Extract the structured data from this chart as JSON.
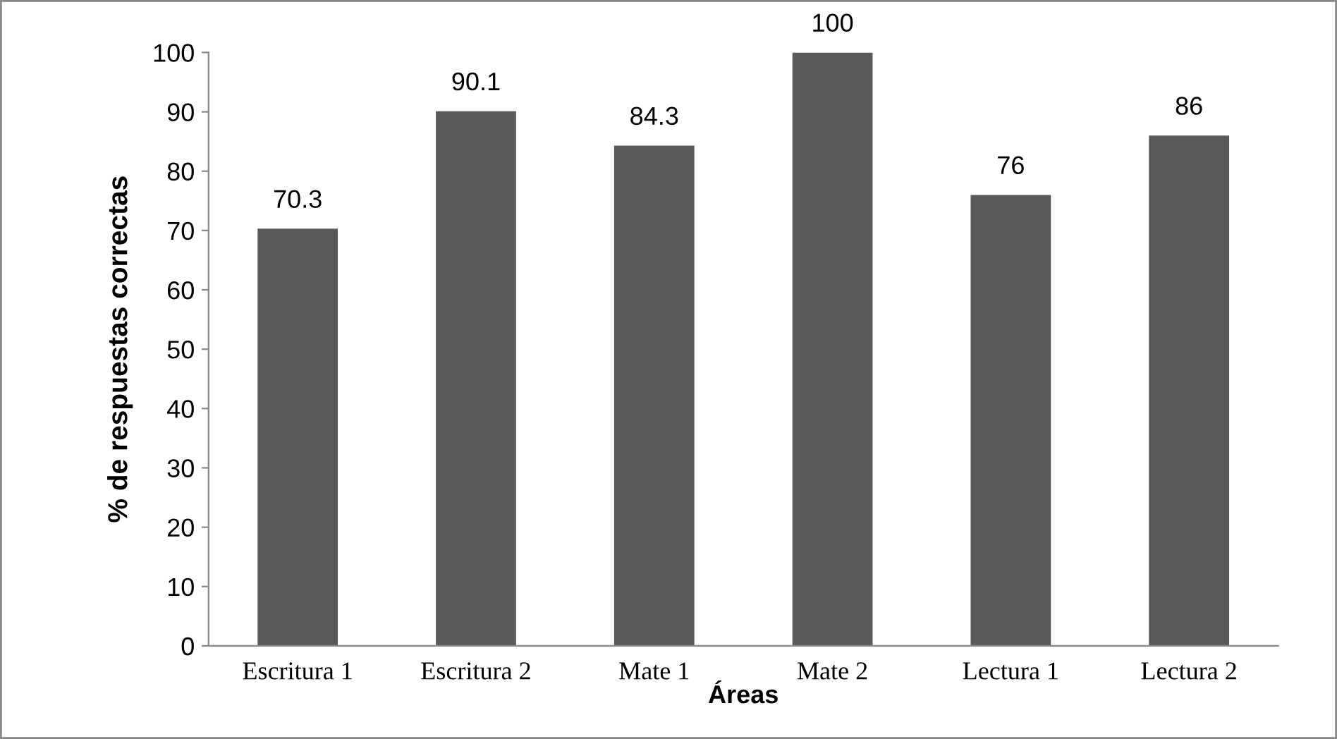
{
  "chart_data": {
    "type": "bar",
    "xlabel": "Áreas",
    "ylabel": "% de respuestas correctas",
    "categories": [
      "Escritura 1",
      "Escritura 2",
      "Mate 1",
      "Mate 2",
      "Lectura 1",
      "Lectura 2"
    ],
    "values": [
      70.3,
      90.1,
      84.3,
      100,
      76,
      86
    ],
    "color": "#595959",
    "ylim": [
      0,
      100
    ],
    "yticks": [
      0,
      10,
      20,
      30,
      40,
      50,
      60,
      70,
      80,
      90,
      100
    ],
    "data_labels": true,
    "grid": false,
    "legend": false
  }
}
